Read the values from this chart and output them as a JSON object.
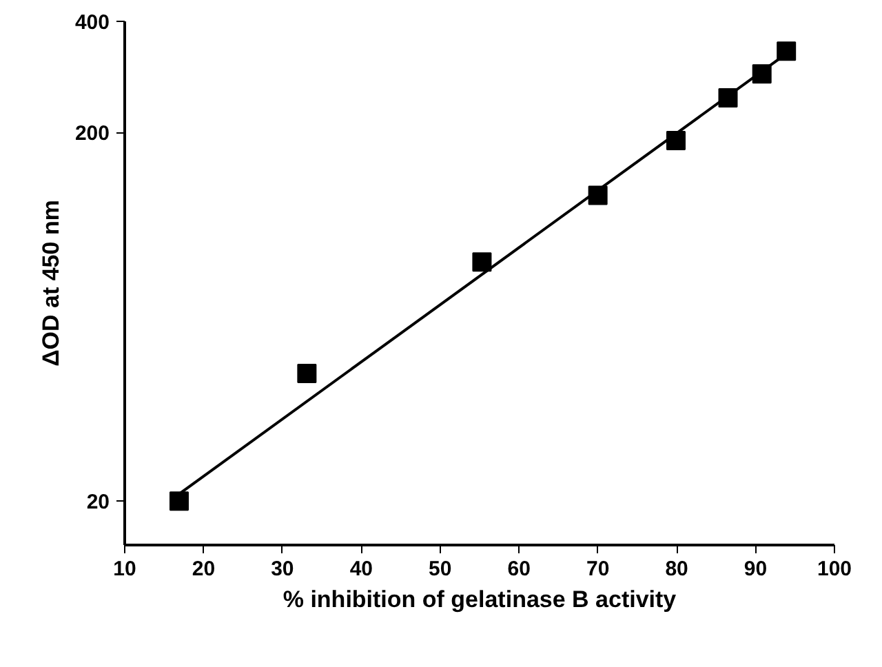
{
  "chart_data": {
    "type": "scatter",
    "xlabel": "% inhibition of gelatinase B activity",
    "ylabel": "ΔOD at 450 nm",
    "log": "y",
    "xlim": [
      10,
      100
    ],
    "xticks": [
      10,
      20,
      30,
      40,
      50,
      60,
      70,
      80,
      90,
      100
    ],
    "ylim": [
      15.2,
      400
    ],
    "yticks": [
      20,
      200,
      400
    ],
    "grid": false,
    "series": [
      {
        "color": "#000000",
        "marker": "square",
        "x": [
          16.9,
          33.1,
          55.3,
          70.0,
          79.9,
          86.5,
          90.8,
          93.9
        ],
        "values": [
          20,
          44.4,
          89,
          135,
          190,
          248,
          288,
          332
        ]
      },
      {
        "type": "line",
        "color": "#000000",
        "line_style": "solid",
        "x": [
          16.9,
          93.9
        ],
        "values": [
          20.9,
          327
        ]
      }
    ]
  }
}
